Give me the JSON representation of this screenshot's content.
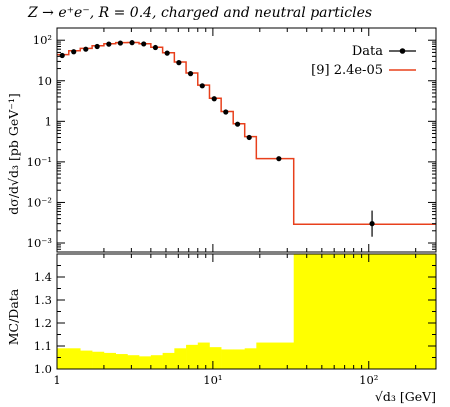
{
  "chart_data": [
    {
      "type": "line",
      "title": "Z → e⁺e⁻, R = 0.4, charged and neutral particles",
      "xlabel": "√d₃ [GeV]",
      "ylabel": "dσ/d√d₃ [pb GeV⁻¹]",
      "xscale": "log",
      "yscale": "log",
      "xlim": [
        1,
        270
      ],
      "ylim": [
        0.0006,
        200
      ],
      "x_ticks": [
        "1",
        "10¹",
        "10²"
      ],
      "y_ticks": [
        "10²",
        "10",
        "1",
        "10⁻¹",
        "10⁻²",
        "10⁻³"
      ],
      "legend_position": "top-right",
      "series": [
        {
          "name": "Data",
          "style": "points-with-errors",
          "color": "#000000",
          "x": [
            1.08,
            1.28,
            1.53,
            1.81,
            2.15,
            2.55,
            3.03,
            3.6,
            4.28,
            5.09,
            6.05,
            7.19,
            8.55,
            10.2,
            12.1,
            14.4,
            17.1,
            26.5,
            105
          ],
          "y": [
            42,
            52,
            60,
            70,
            80,
            85,
            87,
            81,
            66,
            48,
            28,
            15,
            7.5,
            3.6,
            1.7,
            0.85,
            0.4,
            0.12,
            0.003
          ]
        },
        {
          "name": "[9] 2.4e-05",
          "style": "step",
          "color": "#e8401c",
          "edges": [
            1.0,
            1.19,
            1.41,
            1.68,
            2.0,
            2.38,
            2.83,
            3.36,
            4.0,
            4.76,
            5.66,
            6.73,
            8.0,
            9.51,
            11.3,
            13.5,
            16.0,
            19.0,
            33.0,
            270
          ],
          "values": [
            44,
            55,
            63,
            73,
            82,
            87,
            88,
            82,
            67,
            49,
            29,
            15.5,
            7.8,
            3.7,
            1.75,
            0.87,
            0.42,
            0.12,
            0.0029
          ]
        }
      ]
    },
    {
      "type": "area",
      "ylabel": "MC/Data",
      "xscale": "log",
      "xlim": [
        1,
        270
      ],
      "ylim": [
        1.0,
        1.5
      ],
      "y_ticks": [
        "1.0",
        "1.1",
        "1.2",
        "1.3",
        "1.4"
      ],
      "x_ticks": [
        "1",
        "10¹",
        "10²"
      ],
      "band_color": "#ffff00",
      "edges": [
        1.0,
        1.19,
        1.41,
        1.68,
        2.0,
        2.38,
        2.83,
        3.36,
        4.0,
        4.76,
        5.66,
        6.73,
        8.0,
        9.51,
        11.3,
        13.5,
        16.0,
        19.0,
        33.0,
        270
      ],
      "values": [
        1.09,
        1.09,
        1.08,
        1.075,
        1.07,
        1.065,
        1.06,
        1.055,
        1.06,
        1.07,
        1.09,
        1.105,
        1.115,
        1.095,
        1.085,
        1.085,
        1.09,
        1.115,
        1.5
      ]
    }
  ]
}
